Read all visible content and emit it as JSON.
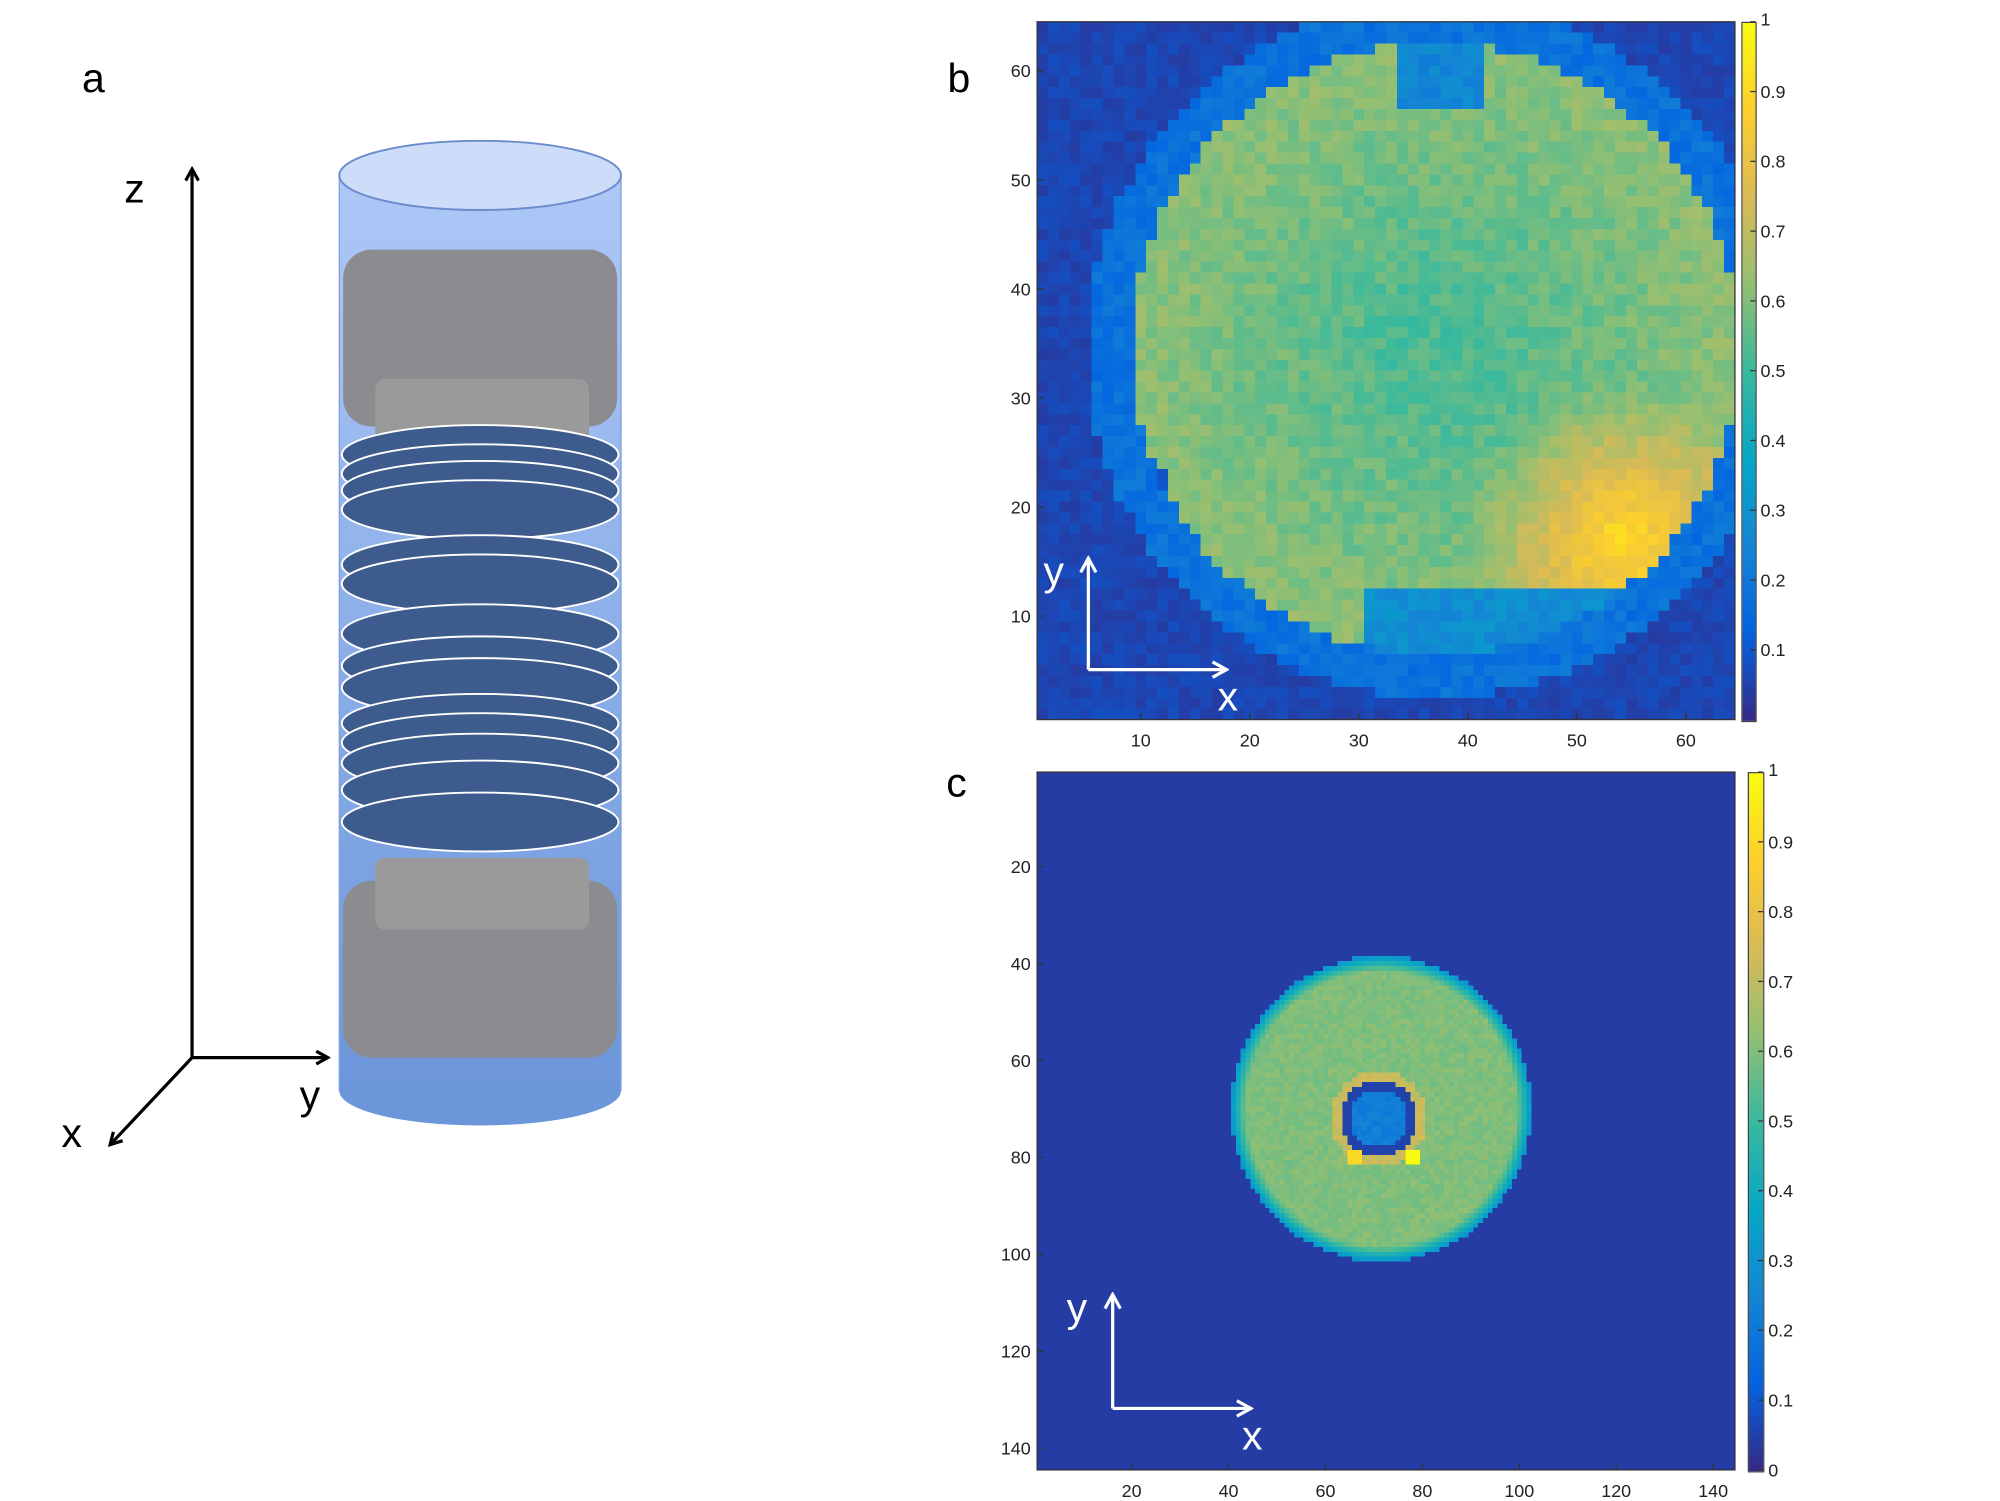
{
  "panel_a": {
    "label": "a",
    "axis_labels": {
      "z": "z",
      "y": "y",
      "x": "x"
    },
    "colors": {
      "cylinder_top": "#cddcf8",
      "cylinder_body": "#8fb0ee",
      "disk": "#3d5b8c",
      "block": "#8a8c90"
    }
  },
  "chart_data": [
    {
      "type": "heatmap",
      "panel_label": "b",
      "grid_size": [
        64,
        64
      ],
      "x_ticks": [
        10,
        20,
        30,
        40,
        50,
        60
      ],
      "y_ticks": [
        10,
        20,
        30,
        40,
        50,
        60
      ],
      "y_direction": "up",
      "xlim": [
        0.5,
        64.5
      ],
      "ylim": [
        0.5,
        64.5
      ],
      "colormap": "parula",
      "clim": [
        0,
        1
      ],
      "colorbar_ticks": [
        "0.1",
        "0.2",
        "0.3",
        "0.4",
        "0.5",
        "0.6",
        "0.7",
        "0.8",
        "0.9",
        "1"
      ],
      "inset_axes": {
        "x": "x",
        "y": "y"
      }
    },
    {
      "type": "heatmap",
      "panel_label": "c",
      "grid_size": [
        144,
        144
      ],
      "x_ticks": [
        20,
        40,
        60,
        80,
        100,
        120,
        140
      ],
      "y_ticks": [
        20,
        40,
        60,
        80,
        100,
        120,
        140
      ],
      "y_direction": "down",
      "xlim": [
        0.5,
        144.5
      ],
      "ylim": [
        0.5,
        144.5
      ],
      "colormap": "parula",
      "clim": [
        0,
        1
      ],
      "colorbar_ticks": [
        "0",
        "0.1",
        "0.2",
        "0.3",
        "0.4",
        "0.5",
        "0.6",
        "0.7",
        "0.8",
        "0.9",
        "1"
      ],
      "inset_axes": {
        "x": "x",
        "y": "y"
      }
    }
  ]
}
